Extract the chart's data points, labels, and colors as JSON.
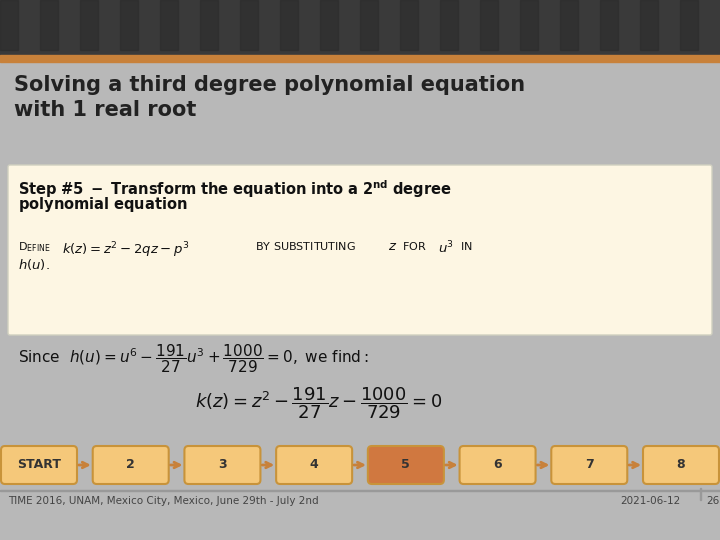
{
  "title_line1": "Solving a third degree polynomial equation",
  "title_line2": "with 1 real root",
  "title_color": "#222222",
  "bg_main_color": "#b8b8b8",
  "header_photo_color": "#555555",
  "orange_bar_color": "#c8813a",
  "title_bg_color": "#c0c0c0",
  "box_bg_color": "#fdf6e3",
  "box_border_color": "#d0d0c0",
  "footer_left": "TIME 2016, UNAM, Mexico City, Mexico, June 29th - July 2nd",
  "footer_right_date": "2021-06-12",
  "footer_right_page": "26",
  "nav_labels": [
    "START",
    "2",
    "3",
    "4",
    "5",
    "6",
    "7",
    "8"
  ],
  "nav_active": 4,
  "nav_normal_color": "#f5c87a",
  "nav_active_color": "#d07840",
  "nav_border_color": "#c8933a",
  "nav_text_color": "#333333",
  "nav_arrow_color": "#c8813a"
}
